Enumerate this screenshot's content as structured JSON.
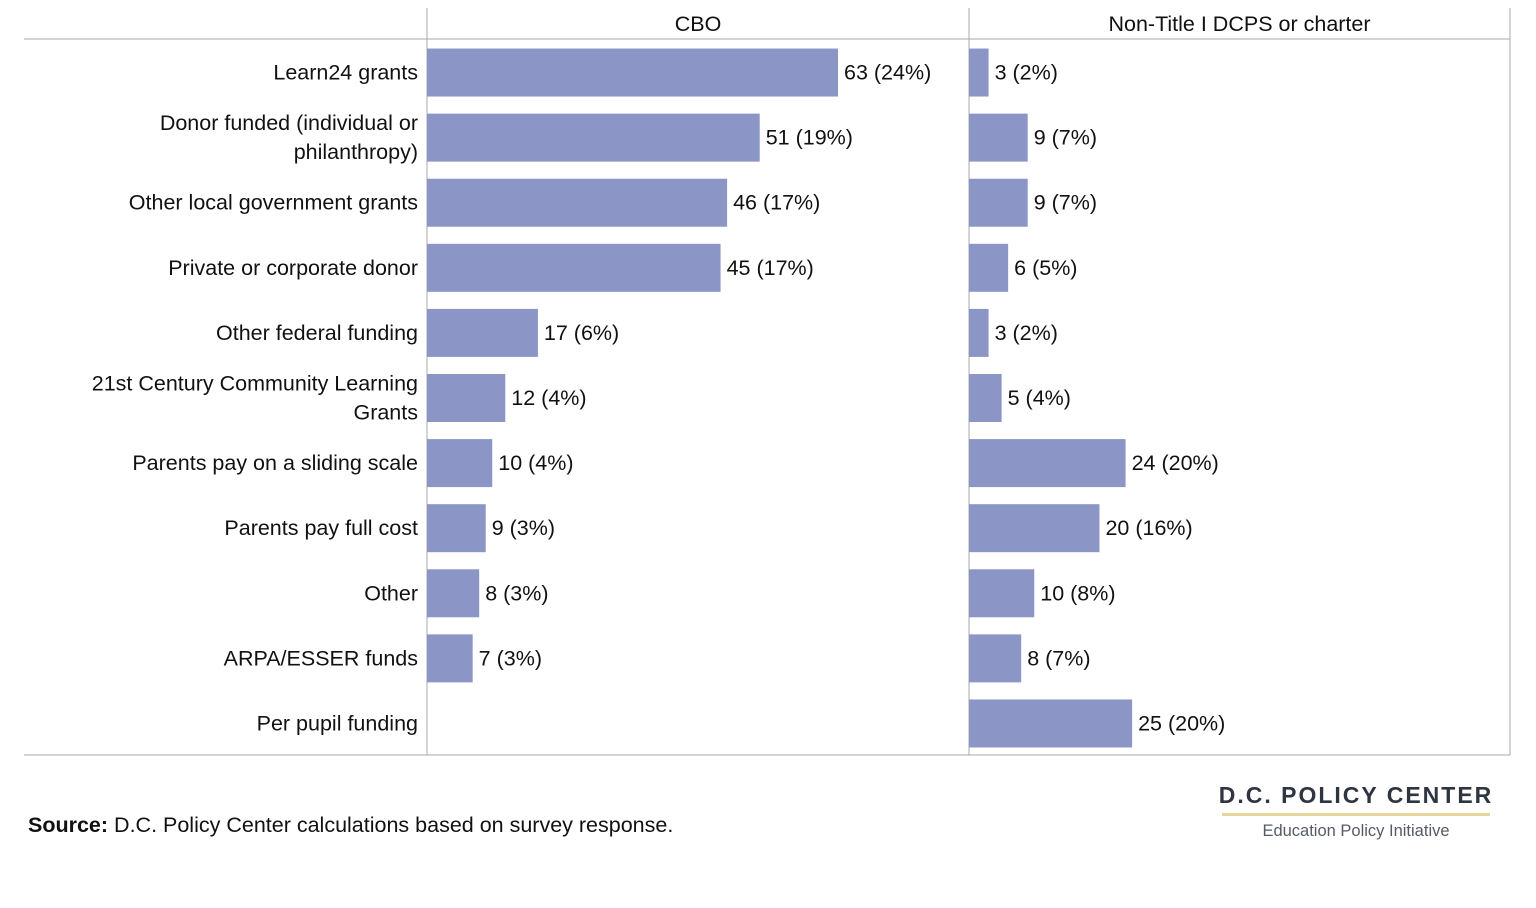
{
  "chart_data": {
    "type": "bar",
    "orientation": "horizontal",
    "categories": [
      [
        "Learn24 grants"
      ],
      [
        "Donor funded (individual or",
        "philanthropy)"
      ],
      [
        "Other local government grants"
      ],
      [
        "Private or corporate donor"
      ],
      [
        "Other federal funding"
      ],
      [
        "21st Century Community Learning",
        "Grants"
      ],
      [
        "Parents pay on a sliding scale"
      ],
      [
        "Parents pay full cost"
      ],
      [
        "Other"
      ],
      [
        "ARPA/ESSER funds"
      ],
      [
        "Per pupil funding"
      ]
    ],
    "series": [
      {
        "name": "CBO",
        "values": [
          63,
          51,
          46,
          45,
          17,
          12,
          10,
          9,
          8,
          7,
          null
        ],
        "labels": [
          "63 (24%)",
          "51 (19%)",
          "46 (17%)",
          "45 (17%)",
          "17 (6%)",
          "12 (4%)",
          "10 (4%)",
          "9 (3%)",
          "8 (3%)",
          "7 (3%)",
          ""
        ]
      },
      {
        "name": "Non-Title I DCPS or charter",
        "values": [
          3,
          9,
          9,
          6,
          3,
          5,
          24,
          20,
          10,
          8,
          25
        ],
        "labels": [
          "3 (2%)",
          "9 (7%)",
          "9 (7%)",
          "6 (5%)",
          "3 (2%)",
          "5 (4%)",
          "24 (20%)",
          "20 (16%)",
          "10 (8%)",
          "8 (7%)",
          "25 (20%)"
        ]
      }
    ],
    "xlim": [
      0,
      83
    ],
    "bar_color": "#8b96c7",
    "grid": false
  },
  "footer": {
    "source_label": "Source:",
    "source_text": " D.C. Policy Center calculations based on survey response."
  },
  "logo": {
    "name": "D.C. POLICY CENTER",
    "subtitle": "Education Policy Initiative"
  }
}
